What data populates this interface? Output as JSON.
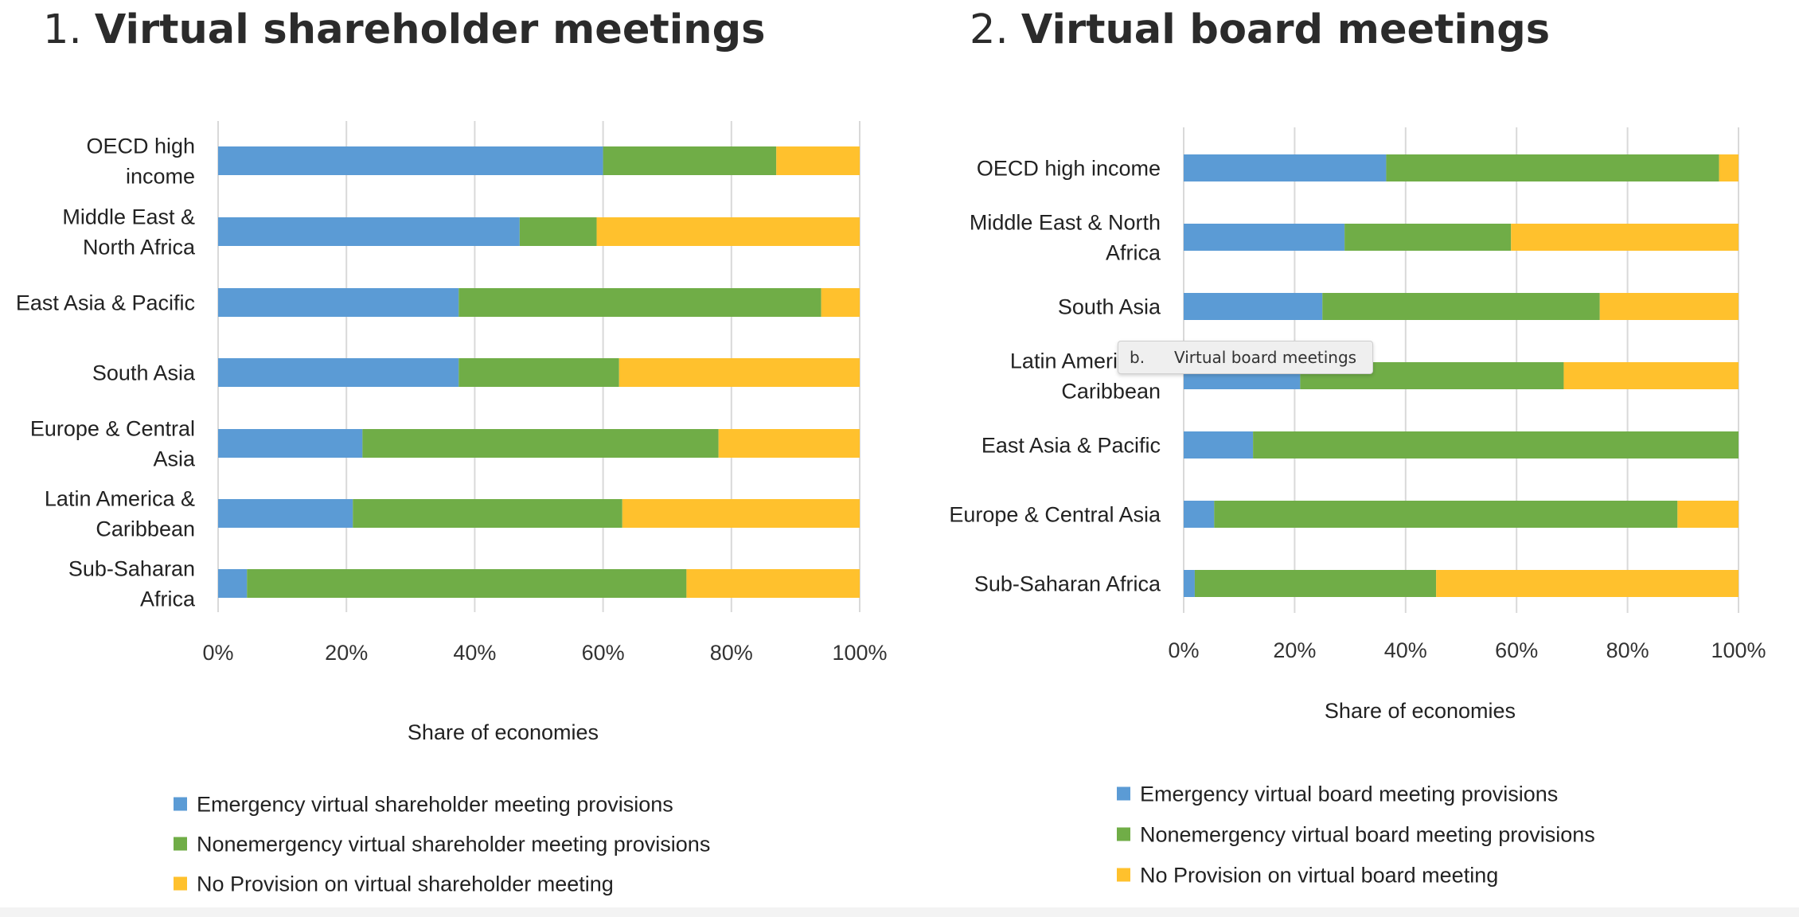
{
  "charts": [
    {
      "number": "1.",
      "title": "Virtual shareholder meetings",
      "xlabel": "Share of economies",
      "ticks": [
        "0%",
        "20%",
        "40%",
        "60%",
        "80%",
        "100%"
      ],
      "legend": [
        "Emergency virtual shareholder meeting provisions",
        "Nonemergency virtual shareholder meeting provisions",
        "No Provision on virtual shareholder meeting"
      ]
    },
    {
      "number": "2.",
      "title": "Virtual board meetings",
      "xlabel": "Share of economies",
      "ticks": [
        "0%",
        "20%",
        "40%",
        "60%",
        "80%",
        "100%"
      ],
      "legend": [
        "Emergency virtual board meeting provisions",
        "Nonemergency virtual board meeting provisions",
        "No Provision on virtual board meeting"
      ]
    }
  ],
  "tooltip": {
    "prefix": "b.",
    "text": "Virtual board meetings"
  },
  "colors": {
    "emergency": "#5b9bd5",
    "nonemergency": "#70ad47",
    "none": "#ffc12d",
    "grid": "#d9d9d9"
  },
  "chart_data": [
    {
      "type": "bar",
      "orientation": "horizontal",
      "stacked": true,
      "title": "1. Virtual shareholder meetings",
      "xlabel": "Share of economies",
      "xlim": [
        0,
        100
      ],
      "grid": true,
      "legend_position": "bottom",
      "categories": [
        [
          "OECD high",
          "income"
        ],
        [
          "Middle East &",
          "North Africa"
        ],
        [
          "East Asia & Pacific"
        ],
        [
          "South Asia"
        ],
        [
          "Europe & Central",
          "Asia"
        ],
        [
          "Latin America &",
          "Caribbean"
        ],
        [
          "Sub-Saharan",
          "Africa"
        ]
      ],
      "series": [
        {
          "name": "Emergency virtual shareholder meeting provisions",
          "values": [
            60,
            47,
            37.5,
            37.5,
            22.5,
            21,
            4.5
          ]
        },
        {
          "name": "Nonemergency virtual shareholder meeting provisions",
          "values": [
            27,
            12,
            56.5,
            25,
            55.5,
            42,
            68.5
          ]
        },
        {
          "name": "No Provision on virtual shareholder meeting",
          "values": [
            13,
            41,
            6,
            37.5,
            22,
            37,
            27
          ]
        }
      ]
    },
    {
      "type": "bar",
      "orientation": "horizontal",
      "stacked": true,
      "title": "2. Virtual board meetings",
      "xlabel": "Share of economies",
      "xlim": [
        0,
        100
      ],
      "grid": true,
      "legend_position": "bottom",
      "categories": [
        [
          "OECD high income"
        ],
        [
          "Middle East & North",
          "Africa"
        ],
        [
          "South Asia"
        ],
        [
          "Latin America &",
          "Caribbean"
        ],
        [
          "East Asia & Pacific"
        ],
        [
          "Europe & Central Asia"
        ],
        [
          "Sub-Saharan Africa"
        ]
      ],
      "series": [
        {
          "name": "Emergency virtual board meeting provisions",
          "values": [
            36.5,
            29,
            25,
            21,
            12.5,
            5.5,
            2
          ]
        },
        {
          "name": "Nonemergency virtual board meeting provisions",
          "values": [
            60,
            30,
            50,
            47.5,
            87.5,
            83.5,
            43.5
          ]
        },
        {
          "name": "No Provision on virtual board meeting",
          "values": [
            3.5,
            41,
            25,
            31.5,
            0,
            11,
            54.5
          ]
        }
      ]
    }
  ]
}
